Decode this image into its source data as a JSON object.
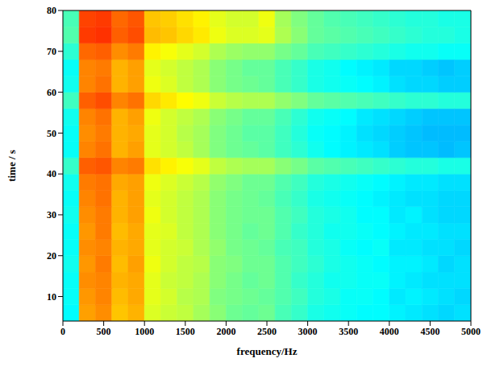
{
  "chart_data": {
    "type": "heatmap",
    "x_label": "frequency/Hz",
    "y_label": "time / s",
    "xlim": [
      0,
      5000
    ],
    "xticks": [
      0,
      500,
      1000,
      1500,
      2000,
      2500,
      3000,
      3500,
      4000,
      4500,
      5000
    ],
    "ylim": [
      4,
      80
    ],
    "yticks": [
      10,
      20,
      30,
      40,
      50,
      60,
      70,
      80
    ],
    "x_edges": [
      0,
      200,
      400,
      600,
      800,
      1000,
      1200,
      1400,
      1600,
      1800,
      2000,
      2200,
      2400,
      2600,
      2800,
      3000,
      3200,
      3400,
      3600,
      3800,
      4000,
      4200,
      4400,
      4600,
      4800,
      5000
    ],
    "y_edges": [
      4,
      8,
      12,
      16,
      20,
      24,
      28,
      32,
      36,
      40,
      44,
      48,
      52,
      56,
      60,
      64,
      68,
      72,
      76,
      80
    ],
    "clim": [
      0,
      1.1
    ],
    "cells": [
      [
        0.41,
        0.79,
        0.81,
        0.75,
        0.77,
        0.65,
        0.63,
        0.62,
        0.59,
        0.56,
        0.53,
        0.52,
        0.53,
        0.49,
        0.47,
        0.44,
        0.43,
        0.42,
        0.41,
        0.41,
        0.4,
        0.39,
        0.38,
        0.37,
        0.38
      ],
      [
        0.42,
        0.8,
        0.82,
        0.76,
        0.78,
        0.66,
        0.64,
        0.61,
        0.6,
        0.55,
        0.54,
        0.53,
        0.52,
        0.5,
        0.48,
        0.45,
        0.44,
        0.42,
        0.42,
        0.41,
        0.39,
        0.4,
        0.39,
        0.38,
        0.37
      ],
      [
        0.42,
        0.81,
        0.82,
        0.77,
        0.78,
        0.66,
        0.63,
        0.62,
        0.6,
        0.56,
        0.54,
        0.52,
        0.53,
        0.5,
        0.47,
        0.45,
        0.43,
        0.43,
        0.42,
        0.42,
        0.4,
        0.39,
        0.38,
        0.38,
        0.38
      ],
      [
        0.43,
        0.8,
        0.83,
        0.76,
        0.79,
        0.67,
        0.64,
        0.62,
        0.61,
        0.56,
        0.55,
        0.53,
        0.53,
        0.5,
        0.48,
        0.46,
        0.44,
        0.43,
        0.42,
        0.41,
        0.4,
        0.4,
        0.39,
        0.37,
        0.38
      ],
      [
        0.42,
        0.81,
        0.82,
        0.77,
        0.78,
        0.66,
        0.64,
        0.63,
        0.6,
        0.57,
        0.54,
        0.53,
        0.52,
        0.49,
        0.48,
        0.45,
        0.44,
        0.42,
        0.41,
        0.42,
        0.39,
        0.39,
        0.38,
        0.38,
        0.37
      ],
      [
        0.42,
        0.8,
        0.83,
        0.76,
        0.78,
        0.66,
        0.65,
        0.62,
        0.6,
        0.56,
        0.54,
        0.52,
        0.53,
        0.5,
        0.47,
        0.45,
        0.43,
        0.43,
        0.42,
        0.41,
        0.4,
        0.39,
        0.39,
        0.38,
        0.38
      ],
      [
        0.43,
        0.81,
        0.83,
        0.77,
        0.79,
        0.67,
        0.64,
        0.62,
        0.6,
        0.56,
        0.54,
        0.53,
        0.53,
        0.5,
        0.48,
        0.45,
        0.44,
        0.43,
        0.41,
        0.41,
        0.39,
        0.4,
        0.38,
        0.37,
        0.37
      ],
      [
        0.42,
        0.82,
        0.84,
        0.77,
        0.79,
        0.66,
        0.64,
        0.62,
        0.6,
        0.56,
        0.54,
        0.53,
        0.52,
        0.49,
        0.47,
        0.44,
        0.43,
        0.42,
        0.41,
        0.4,
        0.39,
        0.38,
        0.38,
        0.37,
        0.37
      ],
      [
        0.43,
        0.83,
        0.84,
        0.78,
        0.79,
        0.67,
        0.65,
        0.63,
        0.61,
        0.57,
        0.55,
        0.53,
        0.53,
        0.5,
        0.48,
        0.45,
        0.44,
        0.43,
        0.42,
        0.41,
        0.4,
        0.39,
        0.39,
        0.38,
        0.38
      ],
      [
        0.47,
        0.86,
        0.87,
        0.82,
        0.83,
        0.72,
        0.7,
        0.68,
        0.66,
        0.62,
        0.6,
        0.59,
        0.59,
        0.56,
        0.54,
        0.51,
        0.5,
        0.49,
        0.48,
        0.47,
        0.46,
        0.45,
        0.45,
        0.44,
        0.44
      ],
      [
        0.42,
        0.82,
        0.84,
        0.77,
        0.79,
        0.66,
        0.64,
        0.62,
        0.59,
        0.55,
        0.53,
        0.52,
        0.51,
        0.48,
        0.46,
        0.43,
        0.41,
        0.4,
        0.39,
        0.38,
        0.36,
        0.35,
        0.35,
        0.34,
        0.35
      ],
      [
        0.42,
        0.81,
        0.83,
        0.77,
        0.78,
        0.66,
        0.64,
        0.61,
        0.59,
        0.55,
        0.53,
        0.51,
        0.51,
        0.48,
        0.45,
        0.42,
        0.41,
        0.4,
        0.38,
        0.37,
        0.36,
        0.35,
        0.34,
        0.34,
        0.34
      ],
      [
        0.43,
        0.82,
        0.84,
        0.77,
        0.79,
        0.67,
        0.64,
        0.62,
        0.6,
        0.56,
        0.54,
        0.52,
        0.52,
        0.49,
        0.46,
        0.43,
        0.42,
        0.41,
        0.39,
        0.38,
        0.37,
        0.36,
        0.35,
        0.35,
        0.35
      ],
      [
        0.48,
        0.86,
        0.88,
        0.82,
        0.84,
        0.73,
        0.71,
        0.69,
        0.67,
        0.63,
        0.61,
        0.6,
        0.6,
        0.57,
        0.55,
        0.52,
        0.51,
        0.5,
        0.49,
        0.48,
        0.47,
        0.46,
        0.46,
        0.45,
        0.45
      ],
      [
        0.43,
        0.82,
        0.84,
        0.77,
        0.79,
        0.67,
        0.65,
        0.62,
        0.6,
        0.56,
        0.54,
        0.53,
        0.52,
        0.49,
        0.47,
        0.44,
        0.43,
        0.42,
        0.41,
        0.4,
        0.38,
        0.37,
        0.37,
        0.36,
        0.36
      ],
      [
        0.42,
        0.82,
        0.83,
        0.77,
        0.79,
        0.66,
        0.64,
        0.62,
        0.6,
        0.56,
        0.54,
        0.52,
        0.52,
        0.49,
        0.47,
        0.44,
        0.43,
        0.41,
        0.4,
        0.39,
        0.37,
        0.37,
        0.36,
        0.35,
        0.36
      ],
      [
        0.46,
        0.85,
        0.86,
        0.81,
        0.83,
        0.7,
        0.68,
        0.66,
        0.64,
        0.6,
        0.58,
        0.57,
        0.57,
        0.54,
        0.52,
        0.49,
        0.48,
        0.47,
        0.46,
        0.45,
        0.44,
        0.43,
        0.43,
        0.42,
        0.42
      ],
      [
        0.5,
        0.9,
        0.91,
        0.86,
        0.88,
        0.76,
        0.75,
        0.73,
        0.71,
        0.67,
        0.65,
        0.65,
        0.66,
        0.6,
        0.56,
        0.52,
        0.51,
        0.5,
        0.49,
        0.48,
        0.47,
        0.46,
        0.45,
        0.45,
        0.44
      ],
      [
        0.49,
        0.89,
        0.9,
        0.85,
        0.87,
        0.75,
        0.74,
        0.72,
        0.7,
        0.66,
        0.64,
        0.64,
        0.67,
        0.59,
        0.55,
        0.52,
        0.5,
        0.49,
        0.48,
        0.47,
        0.46,
        0.45,
        0.45,
        0.44,
        0.44
      ]
    ]
  }
}
